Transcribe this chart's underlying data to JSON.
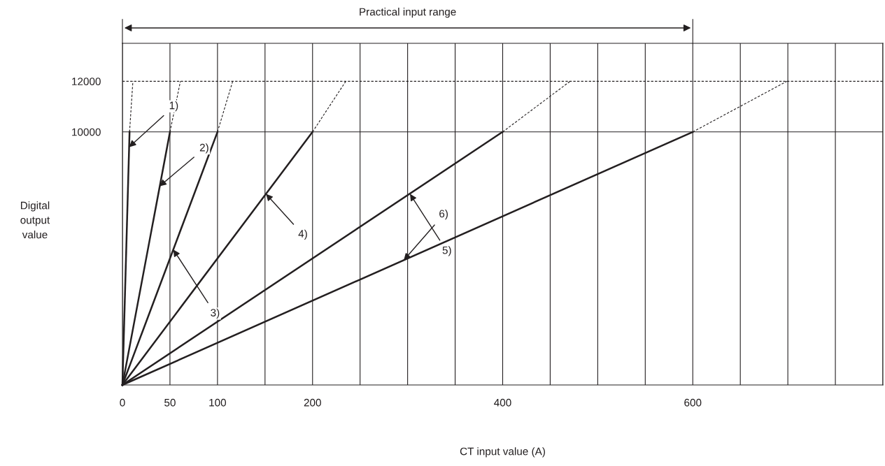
{
  "chart_data": {
    "type": "line",
    "xlabel": "CT input value (A)",
    "ylabel": "Digital output value",
    "xlim": [
      0,
      800
    ],
    "ylim": [
      0,
      13500
    ],
    "xticks": [
      0,
      50,
      100,
      {
        "value": 150,
        "label": null
      },
      200,
      {
        "value": 250,
        "label": null
      },
      {
        "value": 300,
        "label": null
      },
      {
        "value": 350,
        "label": null
      },
      400,
      {
        "value": 450,
        "label": null
      },
      {
        "value": 500,
        "label": null
      },
      {
        "value": 550,
        "label": null
      },
      600,
      {
        "value": 650,
        "label": null
      },
      {
        "value": 700,
        "label": null
      },
      {
        "value": 750,
        "label": null
      },
      {
        "value": 800,
        "label": null
      }
    ],
    "yticks": [
      10000,
      12000
    ],
    "grid": "x",
    "marker": "none",
    "series": [
      {
        "color": "#231f20",
        "line_style": "solid",
        "x": [
          0,
          7.5
        ],
        "values": [
          0,
          10000
        ]
      },
      {
        "color": "#231f20",
        "line_style": "solid",
        "x": [
          0,
          50
        ],
        "values": [
          0,
          10000
        ]
      },
      {
        "color": "#231f20",
        "line_style": "solid",
        "x": [
          0,
          100
        ],
        "values": [
          0,
          10000
        ]
      },
      {
        "color": "#231f20",
        "line_style": "solid",
        "x": [
          0,
          200
        ],
        "values": [
          0,
          10000
        ]
      },
      {
        "color": "#231f20",
        "line_style": "solid",
        "x": [
          0,
          400
        ],
        "values": [
          0,
          10000
        ]
      },
      {
        "color": "#231f20",
        "line_style": "solid",
        "x": [
          0,
          600
        ],
        "values": [
          0,
          10000
        ]
      },
      {
        "color": "#231f20",
        "line_style": "dashed",
        "x": [
          7.5,
          11
        ],
        "values": [
          10000,
          12000
        ]
      },
      {
        "color": "#231f20",
        "line_style": "dashed",
        "x": [
          50,
          61
        ],
        "values": [
          10000,
          12000
        ]
      },
      {
        "color": "#231f20",
        "line_style": "dashed",
        "x": [
          100,
          116
        ],
        "values": [
          10000,
          12000
        ]
      },
      {
        "color": "#231f20",
        "line_style": "dashed",
        "x": [
          200,
          235
        ],
        "values": [
          10000,
          12000
        ]
      },
      {
        "color": "#231f20",
        "line_style": "dashed",
        "x": [
          400,
          471
        ],
        "values": [
          10000,
          12000
        ]
      },
      {
        "color": "#231f20",
        "line_style": "dashed",
        "x": [
          600,
          699
        ],
        "values": [
          10000,
          12000
        ]
      }
    ],
    "ref_lines": [
      {
        "axis": "y",
        "value": 10000,
        "color": "#231f20",
        "line_style": "solid"
      },
      {
        "axis": "y",
        "value": 12000,
        "color": "#231f20",
        "line_style": "dashed"
      }
    ],
    "annotations": [
      "Practical input range",
      {
        "text": "1)",
        "x": 7,
        "y": 9400
      },
      {
        "text": "2)",
        "x": 39,
        "y": 7850
      },
      {
        "text": "3)",
        "x": 53.5,
        "y": 5350
      },
      {
        "text": "4)",
        "x": 151,
        "y": 7550
      },
      {
        "text": "5)",
        "x": 302.5,
        "y": 7550
      },
      {
        "text": "6)",
        "x": 296,
        "y": 4930
      }
    ]
  }
}
